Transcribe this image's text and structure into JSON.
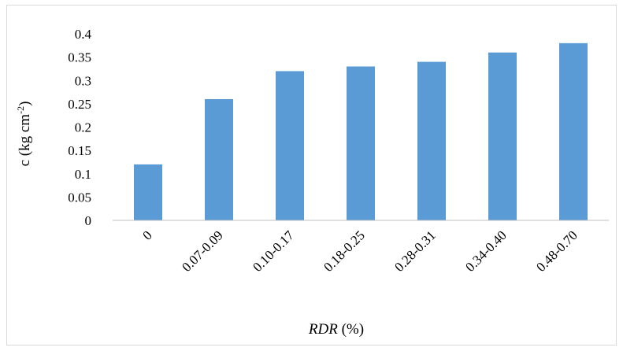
{
  "chart_data": {
    "type": "bar",
    "categories": [
      "0",
      "0.07-0.09",
      "0.10-0.17",
      "0.18-0.25",
      "0.28-0.31",
      "0.34-0.40",
      "0.48-0.70"
    ],
    "series": [
      {
        "values": [
          0.12,
          0.26,
          0.32,
          0.33,
          0.34,
          0.36,
          0.38
        ]
      }
    ],
    "bar_color": "#5b9bd5",
    "ylabel": {
      "base": "c (kg cm",
      "sup": "-2",
      "close": ")"
    },
    "xlabel": {
      "italic": "RDR",
      "rest": " (%)"
    },
    "ylim": [
      0,
      0.4
    ],
    "yticks": [
      "0",
      "0.05",
      "0.1",
      "0.15",
      "0.2",
      "0.25",
      "0.3",
      "0.35",
      "0.4"
    ],
    "grid": false,
    "legend": "none"
  }
}
